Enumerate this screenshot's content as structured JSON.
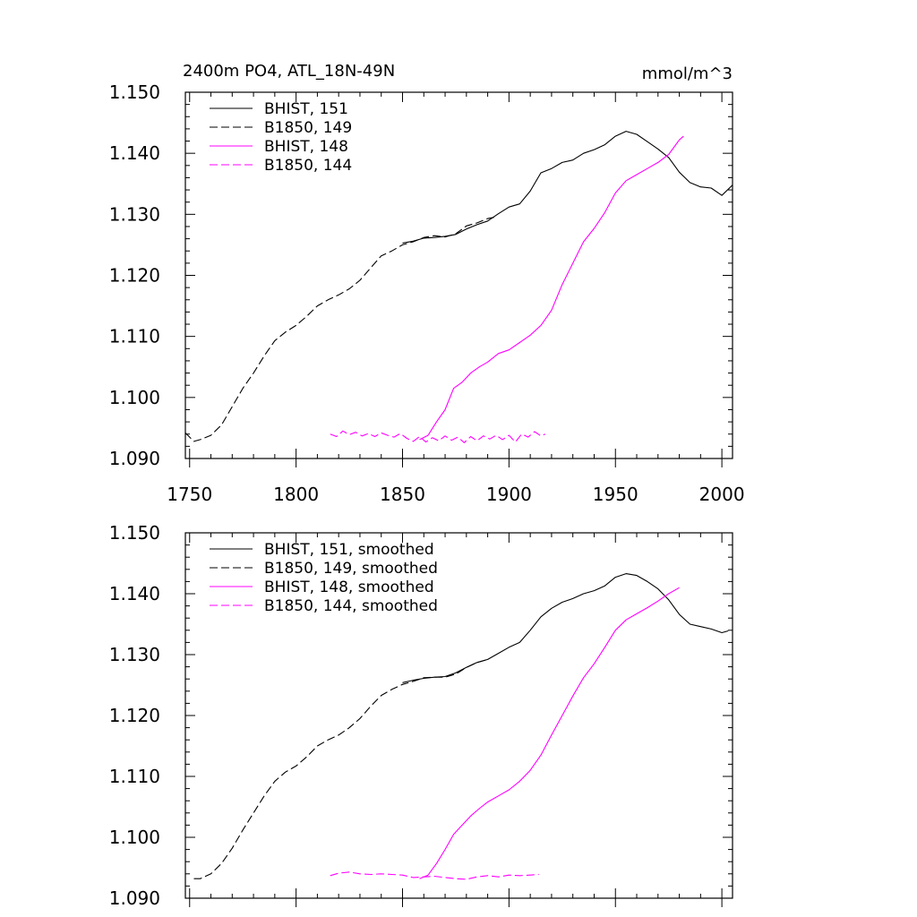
{
  "chart_data": [
    {
      "type": "line",
      "title": "2400m PO4, ATL_18N-49N",
      "units": "mmol/m^3",
      "xlim": [
        1748,
        2005
      ],
      "ylim": [
        1.09,
        1.15
      ],
      "xticks": [
        "1750",
        "1800",
        "1850",
        "1900",
        "1950",
        "2000"
      ],
      "yticks": [
        "1.090",
        "1.100",
        "1.110",
        "1.120",
        "1.130",
        "1.140",
        "1.150"
      ],
      "legend_position": "top-left",
      "grid": false,
      "series": [
        {
          "name": "BHIST, 151",
          "color": "#000000",
          "dash": "solid",
          "points": [
            [
              1850,
              1.1253
            ],
            [
              1855,
              1.1256
            ],
            [
              1860,
              1.1261
            ],
            [
              1865,
              1.1262
            ],
            [
              1870,
              1.1264
            ],
            [
              1875,
              1.1267
            ],
            [
              1880,
              1.1276
            ],
            [
              1885,
              1.1283
            ],
            [
              1890,
              1.1289
            ],
            [
              1895,
              1.1301
            ],
            [
              1900,
              1.1312
            ],
            [
              1905,
              1.1317
            ],
            [
              1910,
              1.1338
            ],
            [
              1915,
              1.1368
            ],
            [
              1920,
              1.1375
            ],
            [
              1925,
              1.1385
            ],
            [
              1930,
              1.1389
            ],
            [
              1935,
              1.14
            ],
            [
              1940,
              1.1406
            ],
            [
              1945,
              1.1414
            ],
            [
              1950,
              1.1428
            ],
            [
              1955,
              1.1436
            ],
            [
              1960,
              1.1431
            ],
            [
              1965,
              1.1419
            ],
            [
              1970,
              1.1407
            ],
            [
              1975,
              1.1393
            ],
            [
              1980,
              1.1369
            ],
            [
              1985,
              1.1352
            ],
            [
              1990,
              1.1345
            ],
            [
              1995,
              1.1343
            ],
            [
              2000,
              1.1331
            ],
            [
              2005,
              1.1348
            ]
          ]
        },
        {
          "name": "B1850, 149",
          "color": "#000000",
          "dash": "dashed",
          "points": [
            [
              1748,
              1.0942
            ],
            [
              1752,
              1.0928
            ],
            [
              1755,
              1.0931
            ],
            [
              1760,
              1.0938
            ],
            [
              1765,
              1.0955
            ],
            [
              1770,
              1.0985
            ],
            [
              1775,
              1.1015
            ],
            [
              1780,
              1.104
            ],
            [
              1785,
              1.1068
            ],
            [
              1790,
              1.1093
            ],
            [
              1795,
              1.1107
            ],
            [
              1800,
              1.1118
            ],
            [
              1805,
              1.1133
            ],
            [
              1810,
              1.115
            ],
            [
              1815,
              1.116
            ],
            [
              1820,
              1.1168
            ],
            [
              1825,
              1.1178
            ],
            [
              1830,
              1.1192
            ],
            [
              1835,
              1.1212
            ],
            [
              1840,
              1.1232
            ],
            [
              1845,
              1.124
            ],
            [
              1850,
              1.125
            ],
            [
              1855,
              1.1255
            ],
            [
              1860,
              1.1262
            ],
            [
              1865,
              1.1265
            ],
            [
              1870,
              1.1263
            ],
            [
              1875,
              1.1268
            ],
            [
              1880,
              1.1281
            ],
            [
              1885,
              1.1286
            ],
            [
              1890,
              1.1293
            ],
            [
              1893,
              1.1295
            ]
          ]
        },
        {
          "name": "BHIST, 148",
          "color": "#ff00ff",
          "dash": "solid",
          "points": [
            [
              1858,
              1.0931
            ],
            [
              1862,
              1.0938
            ],
            [
              1866,
              1.096
            ],
            [
              1870,
              1.098
            ],
            [
              1874,
              1.1015
            ],
            [
              1878,
              1.1025
            ],
            [
              1882,
              1.104
            ],
            [
              1886,
              1.105
            ],
            [
              1890,
              1.1058
            ],
            [
              1895,
              1.1072
            ],
            [
              1900,
              1.1078
            ],
            [
              1905,
              1.109
            ],
            [
              1910,
              1.1102
            ],
            [
              1915,
              1.1118
            ],
            [
              1920,
              1.1143
            ],
            [
              1925,
              1.1185
            ],
            [
              1930,
              1.122
            ],
            [
              1935,
              1.1255
            ],
            [
              1940,
              1.1277
            ],
            [
              1945,
              1.1303
            ],
            [
              1950,
              1.1335
            ],
            [
              1955,
              1.1355
            ],
            [
              1960,
              1.1365
            ],
            [
              1965,
              1.1375
            ],
            [
              1970,
              1.1385
            ],
            [
              1975,
              1.1398
            ],
            [
              1980,
              1.1422
            ],
            [
              1982,
              1.1428
            ]
          ]
        },
        {
          "name": "B1850, 144",
          "color": "#ff00ff",
          "dash": "dashed",
          "points": [
            [
              1816,
              1.094
            ],
            [
              1819,
              1.0936
            ],
            [
              1822,
              1.0945
            ],
            [
              1825,
              1.0939
            ],
            [
              1828,
              1.0943
            ],
            [
              1831,
              1.0937
            ],
            [
              1834,
              1.0941
            ],
            [
              1837,
              1.0936
            ],
            [
              1840,
              1.0942
            ],
            [
              1843,
              1.0938
            ],
            [
              1846,
              1.0935
            ],
            [
              1849,
              1.0941
            ],
            [
              1852,
              1.0933
            ],
            [
              1855,
              1.0928
            ],
            [
              1858,
              1.0936
            ],
            [
              1861,
              1.0927
            ],
            [
              1864,
              1.0934
            ],
            [
              1867,
              1.0929
            ],
            [
              1870,
              1.0937
            ],
            [
              1873,
              1.093
            ],
            [
              1876,
              1.0935
            ],
            [
              1879,
              1.0926
            ],
            [
              1882,
              1.0936
            ],
            [
              1885,
              1.0929
            ],
            [
              1888,
              1.0937
            ],
            [
              1891,
              1.0932
            ],
            [
              1894,
              1.0938
            ],
            [
              1897,
              1.0931
            ],
            [
              1900,
              1.0938
            ],
            [
              1903,
              1.0927
            ],
            [
              1906,
              1.094
            ],
            [
              1909,
              1.0935
            ],
            [
              1912,
              1.0944
            ],
            [
              1915,
              1.0937
            ],
            [
              1917,
              1.094
            ]
          ]
        }
      ]
    },
    {
      "type": "line",
      "title": "",
      "units": "",
      "xlim": [
        1748,
        2005
      ],
      "ylim": [
        1.09,
        1.15
      ],
      "xticks": [],
      "yticks": [
        "1.090",
        "1.100",
        "1.110",
        "1.120",
        "1.130",
        "1.140",
        "1.150"
      ],
      "legend_position": "top-left",
      "grid": false,
      "series": [
        {
          "name": "BHIST, 151, smoothed",
          "color": "#000000",
          "dash": "solid",
          "points": [
            [
              1850,
              1.1254
            ],
            [
              1855,
              1.1258
            ],
            [
              1860,
              1.1261
            ],
            [
              1865,
              1.1263
            ],
            [
              1870,
              1.1264
            ],
            [
              1875,
              1.127
            ],
            [
              1880,
              1.1279
            ],
            [
              1885,
              1.1287
            ],
            [
              1890,
              1.1292
            ],
            [
              1895,
              1.1302
            ],
            [
              1900,
              1.1312
            ],
            [
              1905,
              1.132
            ],
            [
              1910,
              1.134
            ],
            [
              1915,
              1.1362
            ],
            [
              1920,
              1.1376
            ],
            [
              1925,
              1.1386
            ],
            [
              1930,
              1.1392
            ],
            [
              1935,
              1.14
            ],
            [
              1940,
              1.1405
            ],
            [
              1945,
              1.1413
            ],
            [
              1950,
              1.1427
            ],
            [
              1955,
              1.1433
            ],
            [
              1960,
              1.143
            ],
            [
              1965,
              1.142
            ],
            [
              1970,
              1.1408
            ],
            [
              1975,
              1.139
            ],
            [
              1980,
              1.1366
            ],
            [
              1985,
              1.135
            ],
            [
              1990,
              1.1346
            ],
            [
              1995,
              1.1342
            ],
            [
              2000,
              1.1336
            ],
            [
              2003,
              1.1339
            ]
          ]
        },
        {
          "name": "B1850, 149, smoothed",
          "color": "#000000",
          "dash": "dashed",
          "points": [
            [
              1752,
              1.0932
            ],
            [
              1755,
              1.0932
            ],
            [
              1760,
              1.094
            ],
            [
              1765,
              1.0957
            ],
            [
              1770,
              1.0982
            ],
            [
              1775,
              1.1012
            ],
            [
              1780,
              1.104
            ],
            [
              1785,
              1.1068
            ],
            [
              1790,
              1.1092
            ],
            [
              1795,
              1.1107
            ],
            [
              1800,
              1.1117
            ],
            [
              1805,
              1.1132
            ],
            [
              1810,
              1.115
            ],
            [
              1815,
              1.116
            ],
            [
              1820,
              1.1168
            ],
            [
              1825,
              1.118
            ],
            [
              1830,
              1.1195
            ],
            [
              1835,
              1.1215
            ],
            [
              1840,
              1.1233
            ],
            [
              1845,
              1.1243
            ],
            [
              1850,
              1.1251
            ],
            [
              1855,
              1.1256
            ],
            [
              1860,
              1.1262
            ],
            [
              1865,
              1.1263
            ],
            [
              1870,
              1.1263
            ],
            [
              1875,
              1.1268
            ],
            [
              1880,
              1.1279
            ],
            [
              1885,
              1.1287
            ],
            [
              1890,
              1.1292
            ]
          ]
        },
        {
          "name": "BHIST, 148, smoothed",
          "color": "#ff00ff",
          "dash": "solid",
          "points": [
            [
              1858,
              1.0932
            ],
            [
              1862,
              1.0938
            ],
            [
              1866,
              1.0957
            ],
            [
              1870,
              1.098
            ],
            [
              1874,
              1.1005
            ],
            [
              1878,
              1.102
            ],
            [
              1882,
              1.1035
            ],
            [
              1886,
              1.1047
            ],
            [
              1890,
              1.1058
            ],
            [
              1895,
              1.1068
            ],
            [
              1900,
              1.1078
            ],
            [
              1905,
              1.1092
            ],
            [
              1910,
              1.111
            ],
            [
              1915,
              1.1135
            ],
            [
              1920,
              1.1168
            ],
            [
              1925,
              1.12
            ],
            [
              1930,
              1.1232
            ],
            [
              1935,
              1.1262
            ],
            [
              1940,
              1.1285
            ],
            [
              1945,
              1.1312
            ],
            [
              1950,
              1.134
            ],
            [
              1955,
              1.1357
            ],
            [
              1960,
              1.1367
            ],
            [
              1965,
              1.1377
            ],
            [
              1970,
              1.1388
            ],
            [
              1975,
              1.14
            ],
            [
              1980,
              1.141
            ]
          ]
        },
        {
          "name": "B1850, 144, smoothed",
          "color": "#ff00ff",
          "dash": "dashed",
          "points": [
            [
              1816,
              1.0937
            ],
            [
              1820,
              1.0941
            ],
            [
              1825,
              1.0943
            ],
            [
              1830,
              1.094
            ],
            [
              1835,
              1.0939
            ],
            [
              1840,
              1.094
            ],
            [
              1845,
              1.0939
            ],
            [
              1850,
              1.0938
            ],
            [
              1855,
              1.0934
            ],
            [
              1860,
              1.0935
            ],
            [
              1865,
              1.0936
            ],
            [
              1870,
              1.0934
            ],
            [
              1875,
              1.0932
            ],
            [
              1880,
              1.0931
            ],
            [
              1885,
              1.0935
            ],
            [
              1890,
              1.0937
            ],
            [
              1895,
              1.0935
            ],
            [
              1900,
              1.0938
            ],
            [
              1905,
              1.0937
            ],
            [
              1910,
              1.0938
            ],
            [
              1914,
              1.0939
            ]
          ]
        }
      ]
    }
  ]
}
